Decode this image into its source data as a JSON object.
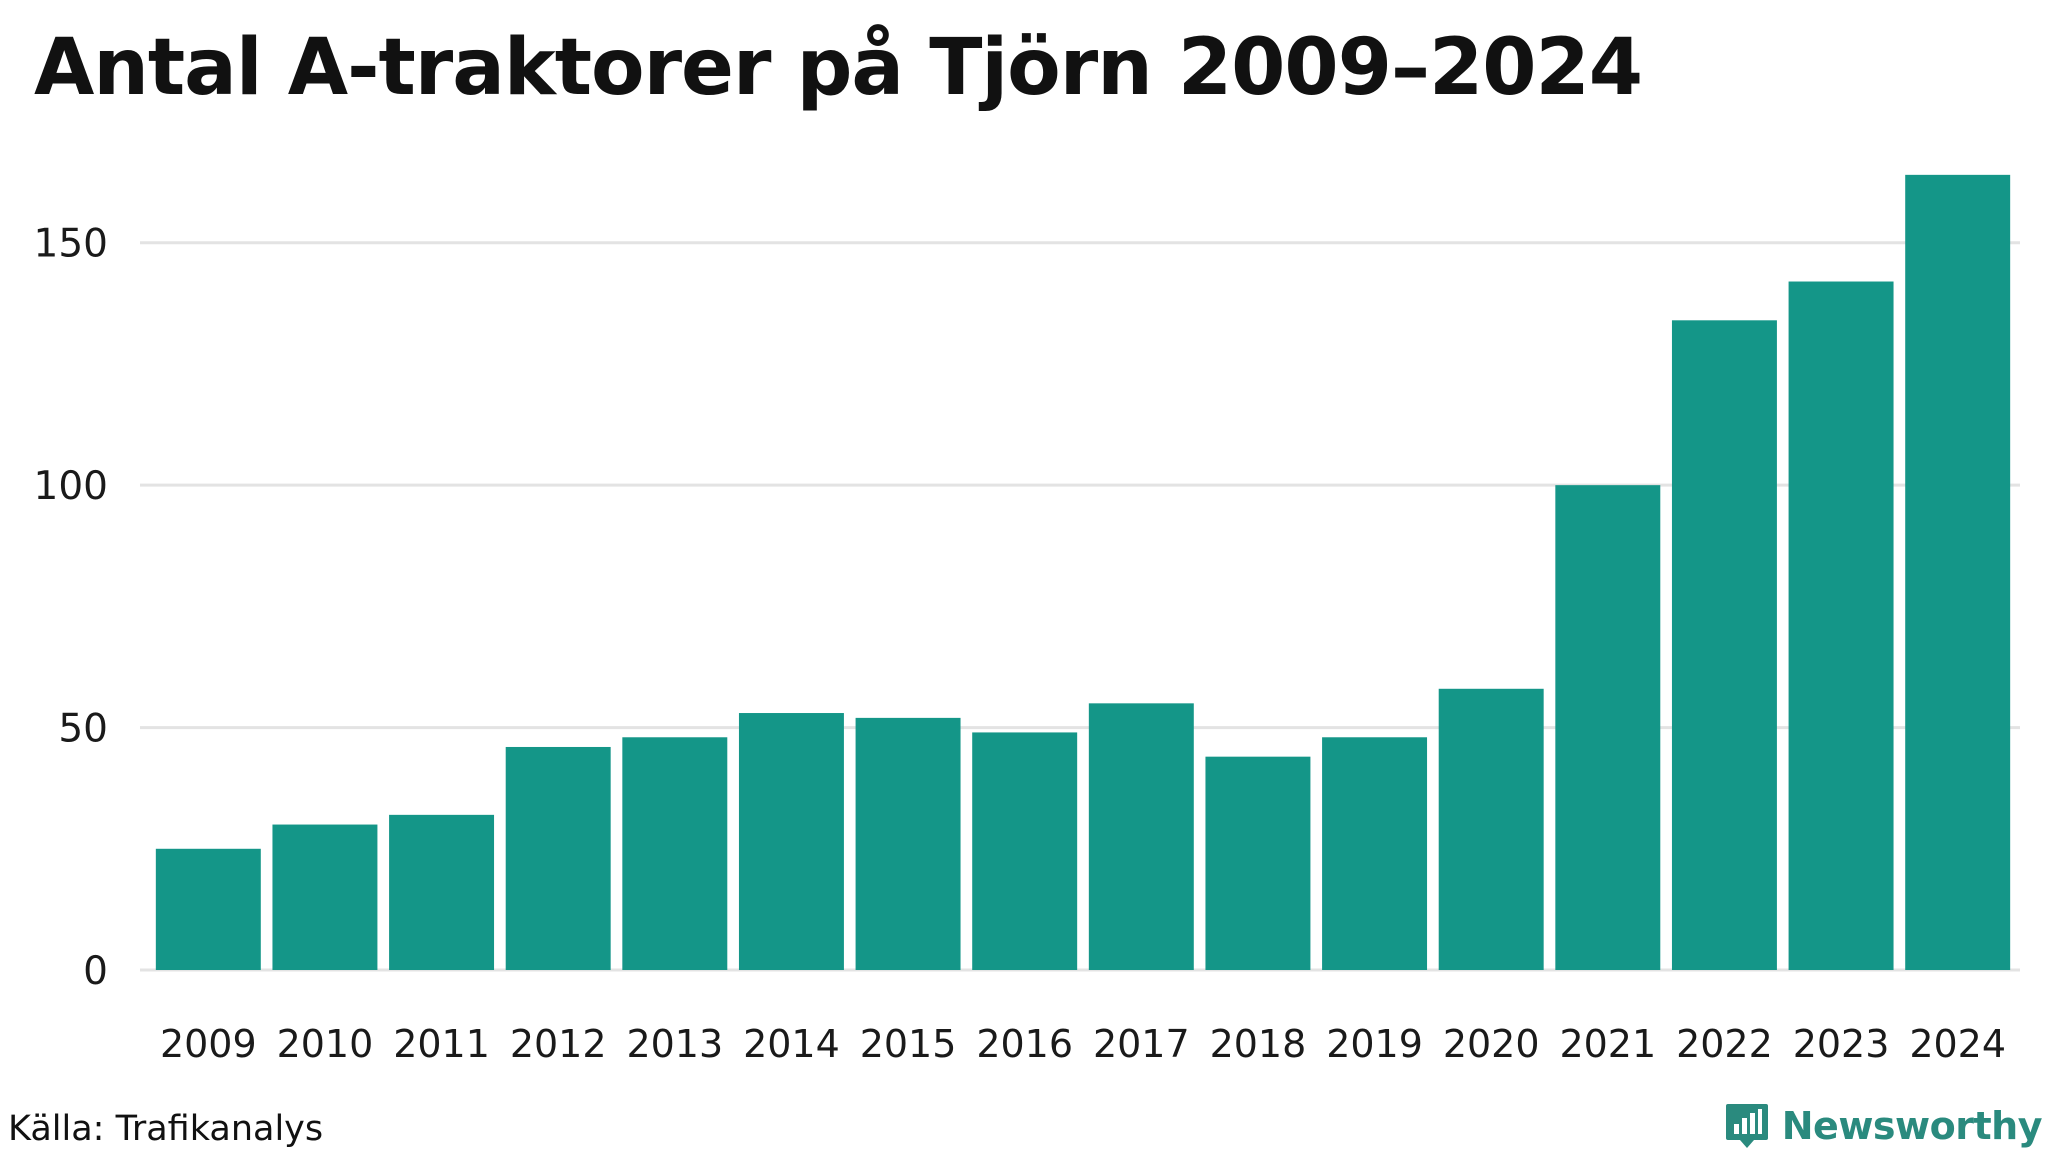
{
  "chart_data": {
    "type": "bar",
    "title": "Antal A-traktorer på Tjörn 2009–2024",
    "categories": [
      "2009",
      "2010",
      "2011",
      "2012",
      "2013",
      "2014",
      "2015",
      "2016",
      "2017",
      "2018",
      "2019",
      "2020",
      "2021",
      "2022",
      "2023",
      "2024"
    ],
    "values": [
      25,
      30,
      32,
      46,
      48,
      53,
      52,
      49,
      55,
      44,
      48,
      58,
      100,
      134,
      142,
      164
    ],
    "yticks": [
      0,
      50,
      100,
      150
    ],
    "ylim": [
      0,
      165
    ],
    "xlabel": "",
    "ylabel": "",
    "grid": true,
    "legend": "none",
    "bar_color": "#149688",
    "grid_color": "#e3e3e3"
  },
  "footer": {
    "source": "Källa: Trafikanalys",
    "brand": "Newsworthy",
    "brand_color": "#2a8a7e",
    "brand_icon": "newsworthy-logo-icon"
  }
}
